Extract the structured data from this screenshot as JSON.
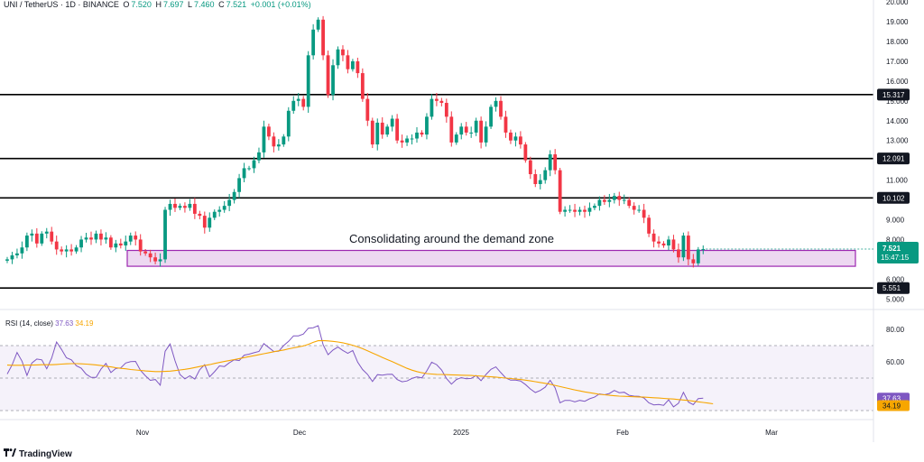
{
  "header": {
    "symbol": "UNI / TetherUS · 1D · BINANCE",
    "open_label": "O",
    "open": "7.520",
    "high_label": "H",
    "high": "7.697",
    "low_label": "L",
    "low": "7.460",
    "close_label": "C",
    "close": "7.521",
    "change": "+0.001 (+0.01%)"
  },
  "rsi_header": {
    "label": "RSI (14, close)",
    "rsi": "37.63",
    "ma": "34.19"
  },
  "annotation": "Consolidating around the demand zone",
  "branding": "TradingView",
  "colors": {
    "up": "#089981",
    "down": "#f23645",
    "rsi": "#7e57c2",
    "rsi_ma": "#f7a600",
    "zone": "#9c27b0",
    "level_line": "#000000"
  },
  "chart_data": [
    {
      "type": "candlestick",
      "title": "UNI / TetherUS · 1D · BINANCE",
      "y_ticks": [
        5.0,
        6.0,
        8.0,
        9.0,
        11.0,
        12.0,
        13.0,
        14.0,
        15.0,
        16.0,
        17.0,
        18.0,
        19.0,
        20.0
      ],
      "y_tick_labels": [
        "5.000",
        "6.000",
        "8.000",
        "9.000",
        "11.000",
        "12.000",
        "13.000",
        "14.000",
        "15.000",
        "16.000",
        "17.000",
        "18.000",
        "19.000",
        "20.000"
      ],
      "x_ticks": [
        "Nov",
        "Dec",
        "2025",
        "Feb",
        "Mar"
      ],
      "horizontal_levels": [
        15.317,
        12.091,
        10.102,
        5.551
      ],
      "level_labels": [
        "15.317",
        "12.091",
        "10.102",
        "5.551"
      ],
      "demand_zone": [
        6.65,
        7.45
      ],
      "last_price": 7.521,
      "last_price_label": "7.521",
      "countdown": "15:47:15",
      "closes": [
        7.0,
        7.2,
        7.3,
        7.6,
        8.2,
        8.3,
        7.8,
        8.3,
        8.4,
        7.9,
        7.5,
        7.4,
        7.5,
        7.4,
        7.6,
        8.0,
        8.1,
        8.0,
        8.3,
        8.0,
        8.1,
        7.6,
        7.8,
        7.7,
        7.9,
        8.2,
        8.0,
        7.4,
        7.3,
        7.1,
        6.9,
        7.0,
        9.5,
        9.8,
        9.6,
        9.7,
        9.6,
        9.8,
        9.3,
        9.2,
        8.6,
        9.1,
        9.4,
        9.5,
        9.7,
        10.0,
        10.4,
        11.1,
        11.6,
        11.6,
        12.0,
        12.4,
        13.7,
        13.2,
        12.7,
        12.8,
        13.2,
        14.5,
        15.0,
        15.1,
        14.7,
        17.3,
        18.6,
        19.1,
        17.3,
        15.3,
        16.8,
        17.6,
        17.3,
        16.6,
        17.0,
        16.4,
        15.1,
        14.0,
        12.8,
        13.9,
        13.3,
        13.7,
        14.1,
        13.0,
        12.9,
        13.1,
        13.1,
        13.4,
        13.3,
        14.2,
        15.1,
        15.0,
        14.9,
        14.2,
        12.9,
        13.3,
        13.7,
        13.4,
        13.4,
        14.0,
        12.9,
        13.7,
        14.7,
        15.0,
        14.2,
        13.4,
        13.0,
        13.2,
        12.8,
        12.0,
        11.3,
        10.8,
        11.0,
        11.5,
        12.3,
        11.5,
        9.4,
        9.5,
        9.5,
        9.4,
        9.5,
        9.4,
        9.6,
        9.7,
        10.0,
        9.9,
        10.0,
        10.2,
        10.0,
        10.0,
        9.7,
        9.5,
        9.5,
        9.1,
        8.3,
        7.9,
        7.8,
        7.7,
        8.0,
        7.5,
        7.1,
        8.2,
        7.0,
        6.8,
        7.5,
        7.521
      ],
      "candle_count": 144
    },
    {
      "type": "line",
      "title": "RSI (14, close)",
      "y_ticks": [
        60.0,
        80.0
      ],
      "y_tick_labels": [
        "60.00",
        "80.00"
      ],
      "levels": [
        70.0,
        50.0,
        30.0
      ],
      "series": [
        {
          "name": "RSI",
          "value_label": "37.63",
          "values": [
            52.5,
            58.2,
            65.8,
            60.4,
            51.6,
            59.3,
            61.7,
            61.2,
            55.7,
            62.2,
            72.2,
            67.6,
            62.5,
            61.2,
            57.6,
            56.1,
            52.4,
            50.4,
            50.4,
            55.5,
            59.0,
            53.4,
            55.9,
            56.3,
            59.3,
            60.1,
            60.3,
            54.7,
            51.4,
            48.6,
            49.1,
            45.6,
            66.5,
            71.0,
            60.6,
            52.2,
            49.5,
            51.4,
            49.4,
            55.1,
            58.2,
            50.8,
            53.9,
            57.5,
            57.1,
            59.4,
            61.3,
            60.8,
            64.1,
            64.7,
            65.6,
            66.4,
            71.2,
            68.8,
            66.4,
            66.5,
            70.0,
            72.6,
            76.0,
            76.0,
            77.1,
            80.7,
            81.0,
            82.3,
            70.5,
            64.4,
            67.3,
            69.1,
            67.0,
            65.3,
            67.0,
            59.8,
            55.3,
            52.3,
            47.9,
            52.1,
            51.8,
            52.3,
            52.4,
            49.1,
            47.7,
            48.2,
            49.8,
            50.8,
            50.1,
            54.4,
            59.8,
            58.3,
            55.0,
            49.8,
            46.3,
            49.1,
            50.3,
            49.6,
            49.8,
            51.6,
            48.4,
            52.2,
            55.4,
            56.9,
            53.4,
            50.1,
            48.7,
            48.8,
            48.2,
            46.0,
            43.3,
            41.1,
            42.4,
            44.4,
            48.6,
            44.0,
            34.8,
            36.3,
            36.3,
            35.4,
            36.3,
            35.7,
            37.3,
            38.3,
            40.3,
            39.7,
            40.5,
            42.4,
            41.0,
            41.3,
            39.4,
            38.9,
            38.7,
            37.8,
            34.7,
            33.5,
            33.8,
            33.2,
            36.6,
            32.3,
            34.5,
            41.2,
            35.2,
            33.6,
            37.4,
            37.63
          ]
        },
        {
          "name": "RSI-based MA",
          "value_label": "34.19",
          "values": [
            58.0,
            57.9,
            57.9,
            57.9,
            58.0,
            58.0,
            58.1,
            58.2,
            58.2,
            58.2,
            58.4,
            58.6,
            58.8,
            58.9,
            58.9,
            58.8,
            58.6,
            58.4,
            58.1,
            57.7,
            57.3,
            56.9,
            56.4,
            56.0,
            55.7,
            55.3,
            55.0,
            54.7,
            54.4,
            54.2,
            54.0,
            54.0,
            54.1,
            54.3,
            54.6,
            55.0,
            55.4,
            55.9,
            56.5,
            57.1,
            57.7,
            58.3,
            59.0,
            59.6,
            60.2,
            60.8,
            61.4,
            62.0,
            62.6,
            63.2,
            63.8,
            64.4,
            65.0,
            65.6,
            66.2,
            66.8,
            67.3,
            68.0,
            68.6,
            69.2,
            69.8,
            70.8,
            72.0,
            73.0,
            73.1,
            72.9,
            72.6,
            72.2,
            71.7,
            71.0,
            70.2,
            69.2,
            68.1,
            66.8,
            65.4,
            64.1,
            62.7,
            61.4,
            60.1,
            58.8,
            57.4,
            56.0,
            54.9,
            54.0,
            53.3,
            52.8,
            52.5,
            52.3,
            52.2,
            52.1,
            52.0,
            51.9,
            51.8,
            51.7,
            51.6,
            51.4,
            51.2,
            51.0,
            50.8,
            50.6,
            50.3,
            50.0,
            49.7,
            49.4,
            49.1,
            48.7,
            48.3,
            47.8,
            47.3,
            46.8,
            46.2,
            45.5,
            44.8,
            44.1,
            43.4,
            42.7,
            42.1,
            41.5,
            41.0,
            40.5,
            40.0,
            39.7,
            39.4,
            39.1,
            38.9,
            38.8,
            38.6,
            38.5,
            38.4,
            38.3,
            38.1,
            37.9,
            37.7,
            37.5,
            37.3,
            37.1,
            36.8,
            36.5,
            36.2,
            35.8,
            35.4,
            35.0,
            34.6,
            34.19
          ]
        }
      ]
    }
  ]
}
